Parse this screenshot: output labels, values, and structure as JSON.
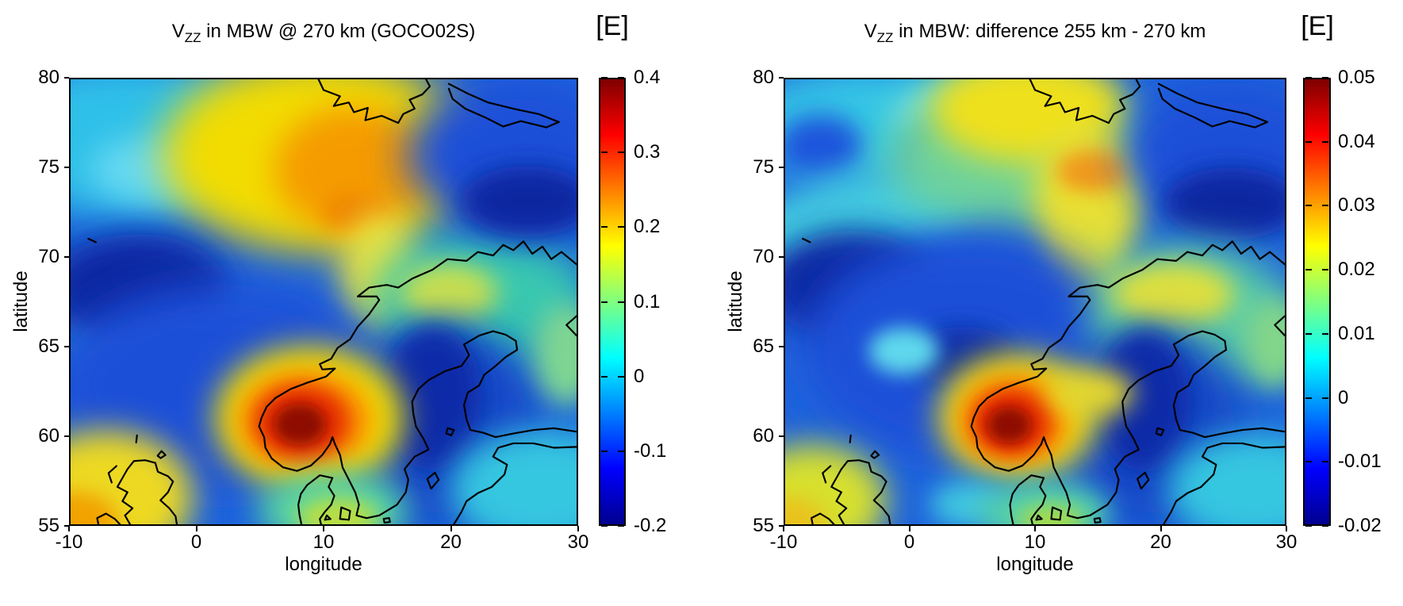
{
  "figure": {
    "panels": [
      {
        "title_v": "V",
        "title_sub": "ZZ",
        "title_rest": " in MBW @ 270 km (GOCO02S)",
        "unit_label": "[E]",
        "xlabel": "longitude",
        "ylabel": "latitude",
        "xtick_labels": [
          "-10",
          "0",
          "10",
          "20",
          "30"
        ],
        "ytick_labels": [
          "80",
          "75",
          "70",
          "65",
          "60",
          "55"
        ],
        "colorbar_tick_labels": [
          "0.4",
          "0.3",
          "0.2",
          "0.1",
          "0",
          "-0.1",
          "-0.2"
        ]
      },
      {
        "title_v": "V",
        "title_sub": "ZZ",
        "title_rest": " in MBW: difference 255 km - 270 km",
        "unit_label": "[E]",
        "xlabel": "longitude",
        "ylabel": "latitude",
        "xtick_labels": [
          "-10",
          "0",
          "10",
          "20",
          "30"
        ],
        "ytick_labels": [
          "80",
          "75",
          "70",
          "65",
          "60",
          "55"
        ],
        "colorbar_tick_labels": [
          "0.05",
          "0.04",
          "0.03",
          "0.02",
          "0.01",
          "0",
          "-0.01",
          "-0.02"
        ]
      }
    ]
  },
  "chart_data": [
    {
      "type": "heatmap",
      "title": "V_ZZ in MBW @ 270 km (GOCO02S)",
      "colorbar_unit": "[E]",
      "xlabel": "longitude",
      "ylabel": "latitude",
      "xlim": [
        -10,
        30
      ],
      "ylim": [
        55,
        80
      ],
      "xticks": [
        -10,
        0,
        10,
        20,
        30
      ],
      "yticks": [
        55,
        60,
        65,
        70,
        75,
        80
      ],
      "colormap": "jet",
      "colorbar_range": [
        -0.2,
        0.4
      ],
      "colorbar_ticks": [
        0.4,
        0.3,
        0.2,
        0.1,
        0,
        -0.1,
        -0.2
      ],
      "overlay": "coastlines of Norway, Sweden, Finland, Baltic, Denmark, Scotland, Svalbard, Jan Mayen",
      "features": [
        {
          "region": "southern Norway",
          "lon": 8,
          "lat": 61.5,
          "value": 0.4,
          "description": "strong positive maximum (dark red)"
        },
        {
          "region": "Greenland Sea / west of Svalbard",
          "lon": 8,
          "lat": 76.5,
          "value": 0.27,
          "description": "broad positive ridge (orange-yellow)"
        },
        {
          "region": "NW Scotland / Hebrides",
          "lon": -8,
          "lat": 55.5,
          "value": 0.22,
          "description": "positive anomaly (orange-yellow)"
        },
        {
          "region": "Norwegian Sea west of Lofoten",
          "lon": -5,
          "lat": 68.5,
          "value": -0.2,
          "description": "negative minimum (dark blue)"
        },
        {
          "region": "Gulf of Bothnia / Baltic",
          "lon": 18.5,
          "lat": 61.5,
          "value": -0.17,
          "description": "negative anomaly (dark blue)"
        },
        {
          "region": "Barents Sea NE corner",
          "lon": 26,
          "lat": 73.5,
          "value": -0.17,
          "description": "negative anomaly (dark blue)"
        },
        {
          "region": "northern Sweden / Finland",
          "lon": 20,
          "lat": 68,
          "value": 0.1,
          "description": "weak positive (yellow-green)"
        }
      ]
    },
    {
      "type": "heatmap",
      "title": "V_ZZ in MBW: difference 255 km - 270 km",
      "colorbar_unit": "[E]",
      "xlabel": "longitude",
      "ylabel": "latitude",
      "xlim": [
        -10,
        30
      ],
      "ylim": [
        55,
        80
      ],
      "xticks": [
        -10,
        0,
        10,
        20,
        30
      ],
      "yticks": [
        55,
        60,
        65,
        70,
        75,
        80
      ],
      "colormap": "jet",
      "colorbar_range": [
        -0.02,
        0.05
      ],
      "colorbar_ticks": [
        0.05,
        0.04,
        0.03,
        0.02,
        0.01,
        0,
        -0.01,
        -0.02
      ],
      "overlay": "coastlines of Norway, Sweden, Finland, Baltic, Denmark, Scotland, Svalbard, Jan Mayen",
      "features": [
        {
          "region": "southern Norway",
          "lon": 8,
          "lat": 61.5,
          "value": 0.05,
          "description": "strong positive maximum (dark red)"
        },
        {
          "region": "Barents shelf south of Svalbard",
          "lon": 14.5,
          "lat": 75.5,
          "value": 0.035,
          "description": "localized positive spot (orange)"
        },
        {
          "region": "band toward Svalbard",
          "lon": 9,
          "lat": 79,
          "value": 0.025,
          "description": "positive band (yellow)"
        },
        {
          "region": "NW Scotland / Hebrides",
          "lon": -8.5,
          "lat": 55.5,
          "value": 0.022,
          "description": "positive anomaly (yellow-green)"
        },
        {
          "region": "Norwegian Sea west of Lofoten",
          "lon": -5,
          "lat": 68.5,
          "value": -0.02,
          "description": "negative minimum (dark blue)"
        },
        {
          "region": "Gulf of Bothnia / Baltic",
          "lon": 18.5,
          "lat": 61.5,
          "value": -0.018,
          "description": "negative anomaly (dark blue)"
        },
        {
          "region": "Barents Sea NE corner",
          "lon": 26,
          "lat": 73.5,
          "value": -0.018,
          "description": "negative anomaly (dark blue)"
        },
        {
          "region": "northern Sweden / Finland",
          "lon": 20,
          "lat": 67.5,
          "value": 0.02,
          "description": "weak positive (yellow)"
        }
      ]
    }
  ]
}
